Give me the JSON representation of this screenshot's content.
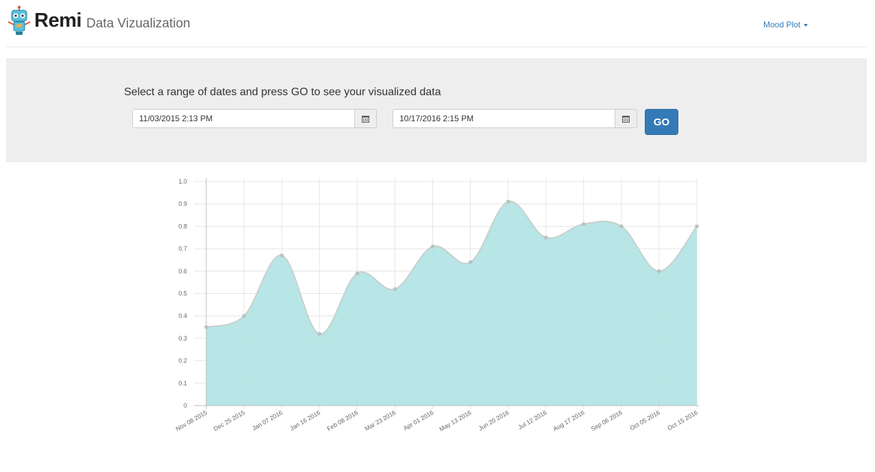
{
  "header": {
    "brand": "Remi",
    "subtitle": "Data Vizualization",
    "menu_label": "Mood Plot"
  },
  "controls": {
    "prompt": "Select a range of dates and press GO to see your visualized data",
    "start_value": "11/03/2015 2:13 PM",
    "end_value": "10/17/2016 2:15 PM",
    "go_label": "GO"
  },
  "colors": {
    "accent": "#337ab7",
    "area_fill": "#b4e4e4",
    "area_line": "#c8cfcf",
    "panel_bg": "#eeeeee"
  },
  "chart_data": {
    "type": "area",
    "categories": [
      "Nov 08 2015",
      "Dec 25 2015",
      "Jan 07 2016",
      "Jan 16 2016",
      "Feb 08 2016",
      "Mar 23 2016",
      "Apr 01 2016",
      "May 13 2016",
      "Jun 20 2016",
      "Jul 12 2016",
      "Aug 17 2016",
      "Sep 06 2016",
      "Oct 05 2016",
      "Oct 15 2016"
    ],
    "series": [
      {
        "values": [
          0.35,
          0.4,
          0.67,
          0.32,
          0.59,
          0.52,
          0.71,
          0.64,
          0.91,
          0.75,
          0.81,
          0.8,
          0.6,
          0.8
        ]
      }
    ],
    "yticks": [
      "0",
      "0.1",
      "0.2",
      "0.3",
      "0.4",
      "0.5",
      "0.6",
      "0.7",
      "0.8",
      "0.9",
      "1.0"
    ],
    "ylim": [
      0,
      1
    ],
    "grid": true
  }
}
